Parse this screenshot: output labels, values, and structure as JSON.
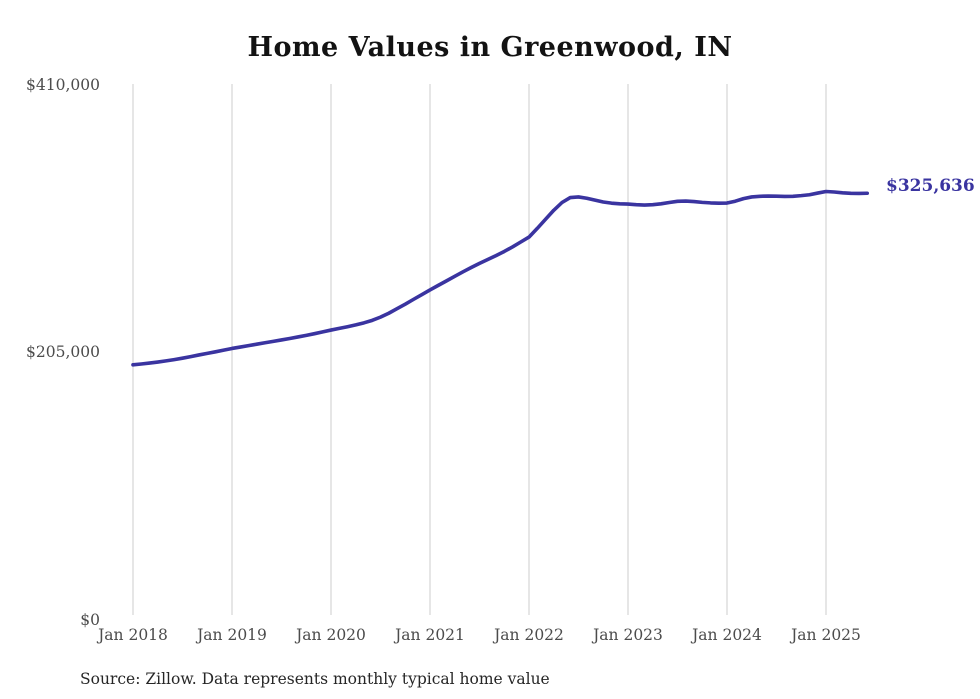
{
  "chart_data": {
    "type": "line",
    "title": "Home Values in Greenwood, IN",
    "xlabel": "",
    "ylabel": "",
    "x_tick_labels": [
      "Jan 2018",
      "Jan 2019",
      "Jan 2020",
      "Jan 2021",
      "Jan 2022",
      "Jan 2023",
      "Jan 2024",
      "Jan 2025"
    ],
    "y_tick_labels": [
      "$0",
      "$205,000",
      "$410,000"
    ],
    "y_ticks": [
      0,
      205000,
      410000
    ],
    "ylim": [
      0,
      410000
    ],
    "grid": "vertical gridlines at each January tick, light gray",
    "legend": "none",
    "series_name": "Monthly typical home value",
    "x_range_note": "monthly points from Jan 2018 through Jun 2025",
    "monthly_values": [
      193200,
      193800,
      194500,
      195300,
      196200,
      197200,
      198300,
      199500,
      200800,
      202000,
      203200,
      204500,
      205800,
      206900,
      208000,
      209100,
      210200,
      211300,
      212400,
      213500,
      214700,
      215900,
      217200,
      218600,
      220000,
      221300,
      222600,
      224000,
      225600,
      227500,
      230000,
      233000,
      236500,
      240000,
      243700,
      247300,
      251000,
      254500,
      258000,
      261500,
      265000,
      268300,
      271500,
      274500,
      277500,
      280700,
      284200,
      288000,
      291800,
      298500,
      305500,
      312500,
      318500,
      322300,
      322800,
      321800,
      320300,
      318900,
      318000,
      317500,
      317300,
      316800,
      316500,
      316800,
      317500,
      318500,
      319400,
      319600,
      319200,
      318600,
      318200,
      318000,
      318100,
      319500,
      321500,
      322800,
      323300,
      323500,
      323400,
      323200,
      323300,
      323800,
      324500,
      325800,
      327000,
      326600,
      326000,
      325600,
      325500,
      325636
    ],
    "last_value": 325636,
    "end_label": "$325,636",
    "line_color": "#3a34a0",
    "grid_color": "#cccccc"
  },
  "source": {
    "text": "Source: Zillow. Data represents monthly typical home value"
  }
}
